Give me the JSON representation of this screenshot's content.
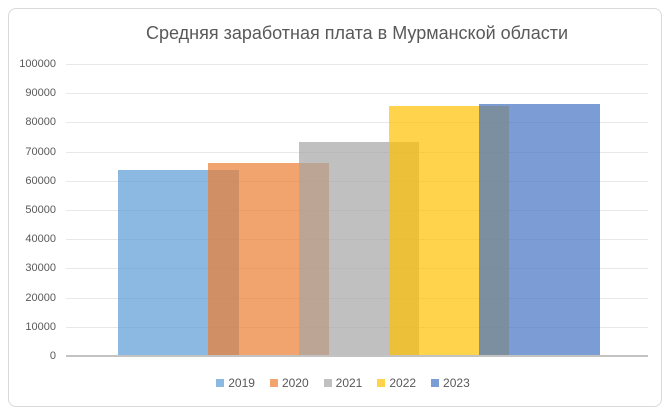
{
  "chart_data": {
    "type": "bar",
    "style": "overlapping-series",
    "title": "Средняя заработная плата в Мурманской области",
    "categories": [
      ""
    ],
    "series": [
      {
        "name": "2019",
        "value": 63700,
        "color": "#5B9BD5"
      },
      {
        "name": "2020",
        "value": 66200,
        "color": "#ED7D31"
      },
      {
        "name": "2021",
        "value": 73400,
        "color": "#A5A5A5"
      },
      {
        "name": "2022",
        "value": 85700,
        "color": "#FFC000"
      },
      {
        "name": "2023",
        "value": 86400,
        "color": "#4472C4"
      }
    ],
    "bar_opacity": 0.7,
    "xlabel": "",
    "ylabel": "",
    "ylim": [
      0,
      100000
    ],
    "y_ticks": [
      0,
      10000,
      20000,
      30000,
      40000,
      50000,
      60000,
      70000,
      80000,
      90000,
      100000
    ],
    "grid": true,
    "legend_position": "bottom",
    "colors": {
      "title_text": "#595959",
      "axis_text": "#595959",
      "gridline": "#E8E8E8",
      "axis_line": "#C3C3C3",
      "frame_border": "#D9D9D9",
      "background": "#FFFFFF"
    }
  }
}
